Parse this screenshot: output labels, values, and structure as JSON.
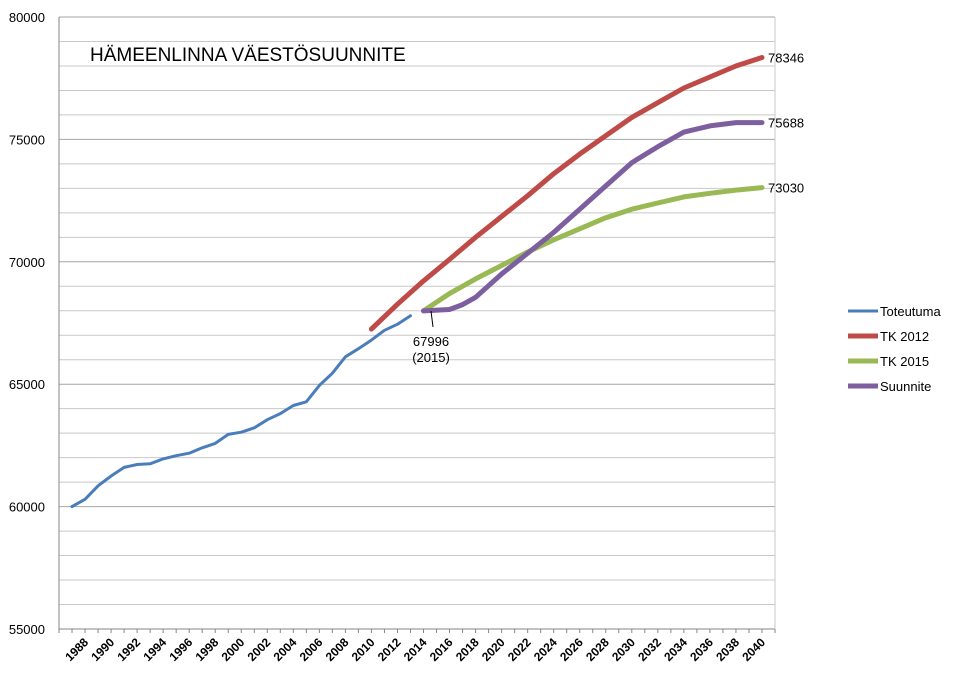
{
  "chart_data": {
    "type": "line",
    "title": "HÄMEENLINNA VÄESTÖSUUNNITE",
    "xlabel": "",
    "ylabel": "",
    "ylim": [
      55000,
      80000
    ],
    "yticks": [
      "55000",
      "60000",
      "65000",
      "70000",
      "75000",
      "80000"
    ],
    "xticks": [
      "1988",
      "1990",
      "1992",
      "1994",
      "1996",
      "1998",
      "2000",
      "2002",
      "2004",
      "2006",
      "2008",
      "2010",
      "2012",
      "2014",
      "2016",
      "2018",
      "2020",
      "2022",
      "2024",
      "2026",
      "2028",
      "2030",
      "2032",
      "2034",
      "2036",
      "2038",
      "2040"
    ],
    "grid": true,
    "legend_position": "right",
    "series": [
      {
        "name": "Toteutuma",
        "color": "#4a7ebb",
        "x": [
          1987,
          1988,
          1989,
          1990,
          1991,
          1992,
          1993,
          1994,
          1995,
          1996,
          1997,
          1998,
          1999,
          2000,
          2001,
          2002,
          2003,
          2004,
          2005,
          2006,
          2007,
          2008,
          2009,
          2010,
          2011,
          2012,
          2013
        ],
        "values": [
          60000,
          60300,
          60850,
          61250,
          61600,
          61720,
          61750,
          61950,
          62080,
          62180,
          62400,
          62580,
          62950,
          63040,
          63220,
          63550,
          63800,
          64130,
          64280,
          64950,
          65450,
          66120,
          66450,
          66800,
          67200,
          67450,
          67800
        ]
      },
      {
        "name": "TK 2012",
        "color": "#be4b48",
        "x": [
          2010,
          2012,
          2014,
          2016,
          2018,
          2020,
          2022,
          2024,
          2026,
          2028,
          2030,
          2032,
          2034,
          2036,
          2038,
          2040
        ],
        "values": [
          67250,
          68270,
          69220,
          70100,
          71000,
          71850,
          72700,
          73600,
          74400,
          75150,
          75900,
          76500,
          77100,
          77550,
          78000,
          78346
        ]
      },
      {
        "name": "TK 2015",
        "color": "#98b954",
        "x": [
          2014,
          2016,
          2018,
          2020,
          2022,
          2024,
          2026,
          2028,
          2030,
          2032,
          2034,
          2036,
          2038,
          2040
        ],
        "values": [
          68000,
          68700,
          69300,
          69850,
          70400,
          70900,
          71350,
          71800,
          72150,
          72400,
          72650,
          72800,
          72930,
          73030
        ]
      },
      {
        "name": "Suunnite",
        "color": "#7d5fa0",
        "x": [
          2014,
          2016,
          2017,
          2018,
          2020,
          2022,
          2024,
          2026,
          2028,
          2030,
          2032,
          2034,
          2036,
          2038,
          2040
        ],
        "values": [
          67996,
          68050,
          68250,
          68550,
          69500,
          70350,
          71200,
          72150,
          73100,
          74050,
          74700,
          75300,
          75550,
          75688,
          75688
        ]
      }
    ],
    "end_labels": [
      "78346",
      "75688",
      "73030"
    ],
    "annotation": {
      "line1": "67996",
      "line2": "(2015)"
    }
  }
}
